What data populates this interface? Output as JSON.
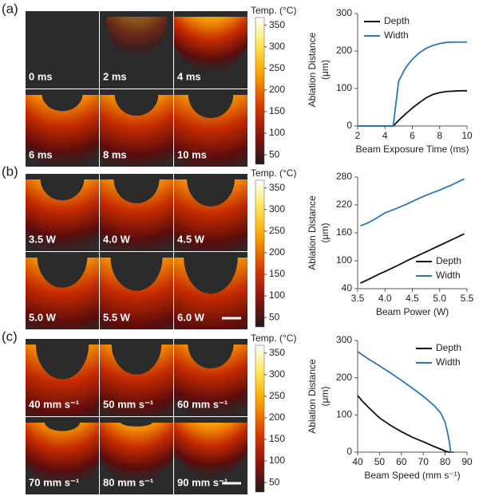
{
  "panels": [
    {
      "label": "(a)",
      "images": [
        "0 ms",
        "2 ms",
        "4 ms",
        "6  ms",
        "8 ms",
        "10 ms"
      ],
      "colorbar": {
        "title": "Temp. (°C)",
        "lim": [
          28,
          368
        ],
        "ticks": [
          50,
          100,
          150,
          200,
          250,
          300,
          350
        ]
      }
    },
    {
      "label": "(b)",
      "images": [
        "3.5 W",
        "4.0 W",
        "4.5 W",
        "5.0 W",
        "5.5 W",
        "6.0 W"
      ],
      "colorbar": {
        "title": "Temp. (°C)",
        "lim": [
          28,
          368
        ],
        "ticks": [
          50,
          100,
          150,
          200,
          250,
          300,
          350
        ]
      }
    },
    {
      "label": "(c)",
      "images": [
        "40 mm s⁻¹",
        "50 mm s⁻¹",
        "60 mm s⁻¹",
        "70 mm s⁻¹",
        "80 mm s⁻¹",
        "90 mm s⁻¹"
      ],
      "colorbar": {
        "title": "Temp. (°C)",
        "lim": [
          28,
          368
        ],
        "ticks": [
          50,
          100,
          150,
          200,
          250,
          300,
          350
        ]
      }
    }
  ],
  "chart_data": [
    {
      "type": "line",
      "xlabel": "Beam Exposure Time (ms)",
      "ylabel": [
        "Ablation Distance",
        "(μm)"
      ],
      "x": [
        2,
        3,
        4,
        4.6,
        5,
        5.5,
        6,
        6.5,
        7,
        7.5,
        8,
        8.5,
        9,
        9.5,
        10
      ],
      "xlim": [
        2,
        10
      ],
      "xticks": [
        2,
        4,
        6,
        8,
        10
      ],
      "ylim": [
        0,
        300
      ],
      "yticks": [
        0,
        100,
        200,
        300
      ],
      "legend": "upper left",
      "series": [
        {
          "name": "Depth",
          "color": "#111111",
          "values": [
            0,
            0,
            0,
            0,
            15,
            32,
            48,
            62,
            75,
            84,
            89,
            92,
            93,
            94,
            94
          ]
        },
        {
          "name": "Width",
          "color": "#2f75b5",
          "values": [
            0,
            0,
            0,
            0,
            120,
            155,
            178,
            195,
            207,
            215,
            220,
            223,
            224,
            224,
            224
          ]
        }
      ]
    },
    {
      "type": "line",
      "xlabel": "Beam Power (W)",
      "ylabel": [
        "Ablation Distance",
        "(μm)"
      ],
      "x": [
        3.55,
        3.7,
        3.85,
        4.0,
        4.2,
        4.4,
        4.6,
        4.8,
        5.0,
        5.2,
        5.45
      ],
      "xlim": [
        3.5,
        5.5
      ],
      "xticks": [
        3.5,
        {
          "value": 4,
          "label": "4.0"
        },
        4.5,
        {
          "value": 5,
          "label": "5.0"
        },
        5.5
      ],
      "ylim": [
        40,
        280
      ],
      "yticks": [
        40,
        100,
        160,
        220,
        280
      ],
      "legend": "lower right",
      "series": [
        {
          "name": "Depth",
          "color": "#111111",
          "values": [
            52,
            60,
            69,
            77,
            88,
            100,
            111,
            122,
            133,
            144,
            158
          ]
        },
        {
          "name": "Width",
          "color": "#2f75b5",
          "values": [
            175,
            182,
            192,
            203,
            212,
            222,
            233,
            243,
            252,
            262,
            276
          ]
        }
      ]
    },
    {
      "type": "line",
      "xlabel": "Beam Speed (mm s⁻¹)",
      "ylabel": [
        "Ablation Distance",
        "(μm)"
      ],
      "x": [
        40,
        42,
        45,
        50,
        55,
        60,
        65,
        70,
        75,
        78,
        80,
        81,
        82,
        82.5,
        84
      ],
      "xlim": [
        40,
        90
      ],
      "xticks": [
        40,
        50,
        60,
        70,
        80,
        90
      ],
      "ylim": [
        0,
        300
      ],
      "yticks": [
        0,
        100,
        200,
        300
      ],
      "legend": "upper right",
      "series": [
        {
          "name": "Depth",
          "color": "#111111",
          "values": [
            152,
            138,
            120,
            92,
            72,
            55,
            40,
            28,
            15,
            8,
            3,
            1,
            0,
            0,
            0
          ]
        },
        {
          "name": "Width",
          "color": "#2f75b5",
          "values": [
            270,
            262,
            250,
            232,
            213,
            193,
            172,
            150,
            125,
            105,
            80,
            55,
            25,
            0,
            0
          ]
        }
      ]
    }
  ]
}
